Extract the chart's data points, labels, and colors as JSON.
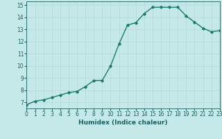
{
  "x": [
    0,
    1,
    2,
    3,
    4,
    5,
    6,
    7,
    8,
    9,
    10,
    11,
    12,
    13,
    14,
    15,
    16,
    17,
    18,
    19,
    20,
    21,
    22,
    23
  ],
  "y": [
    6.8,
    7.1,
    7.2,
    7.4,
    7.6,
    7.8,
    7.9,
    8.3,
    8.8,
    8.8,
    10.0,
    11.8,
    13.35,
    13.55,
    14.3,
    14.82,
    14.82,
    14.82,
    14.82,
    14.1,
    13.6,
    13.1,
    12.8,
    12.9
  ],
  "xlim": [
    0,
    23
  ],
  "ylim": [
    6.5,
    15.3
  ],
  "yticks": [
    7,
    8,
    9,
    10,
    11,
    12,
    13,
    14,
    15
  ],
  "xticks": [
    0,
    1,
    2,
    3,
    4,
    5,
    6,
    7,
    8,
    9,
    10,
    11,
    12,
    13,
    14,
    15,
    16,
    17,
    18,
    19,
    20,
    21,
    22,
    23
  ],
  "xlabel": "Humidex (Indice chaleur)",
  "line_color": "#1a7a6e",
  "marker": "D",
  "marker_size": 1.8,
  "bg_color": "#c5e8e8",
  "grid_major_color": "#b8d8d8",
  "grid_minor_color": "#d0e8e8",
  "tick_color": "#1a5f5f",
  "label_color": "#1a5f5f",
  "line_width": 1.0,
  "tick_fontsize": 5.5,
  "xlabel_fontsize": 6.5
}
